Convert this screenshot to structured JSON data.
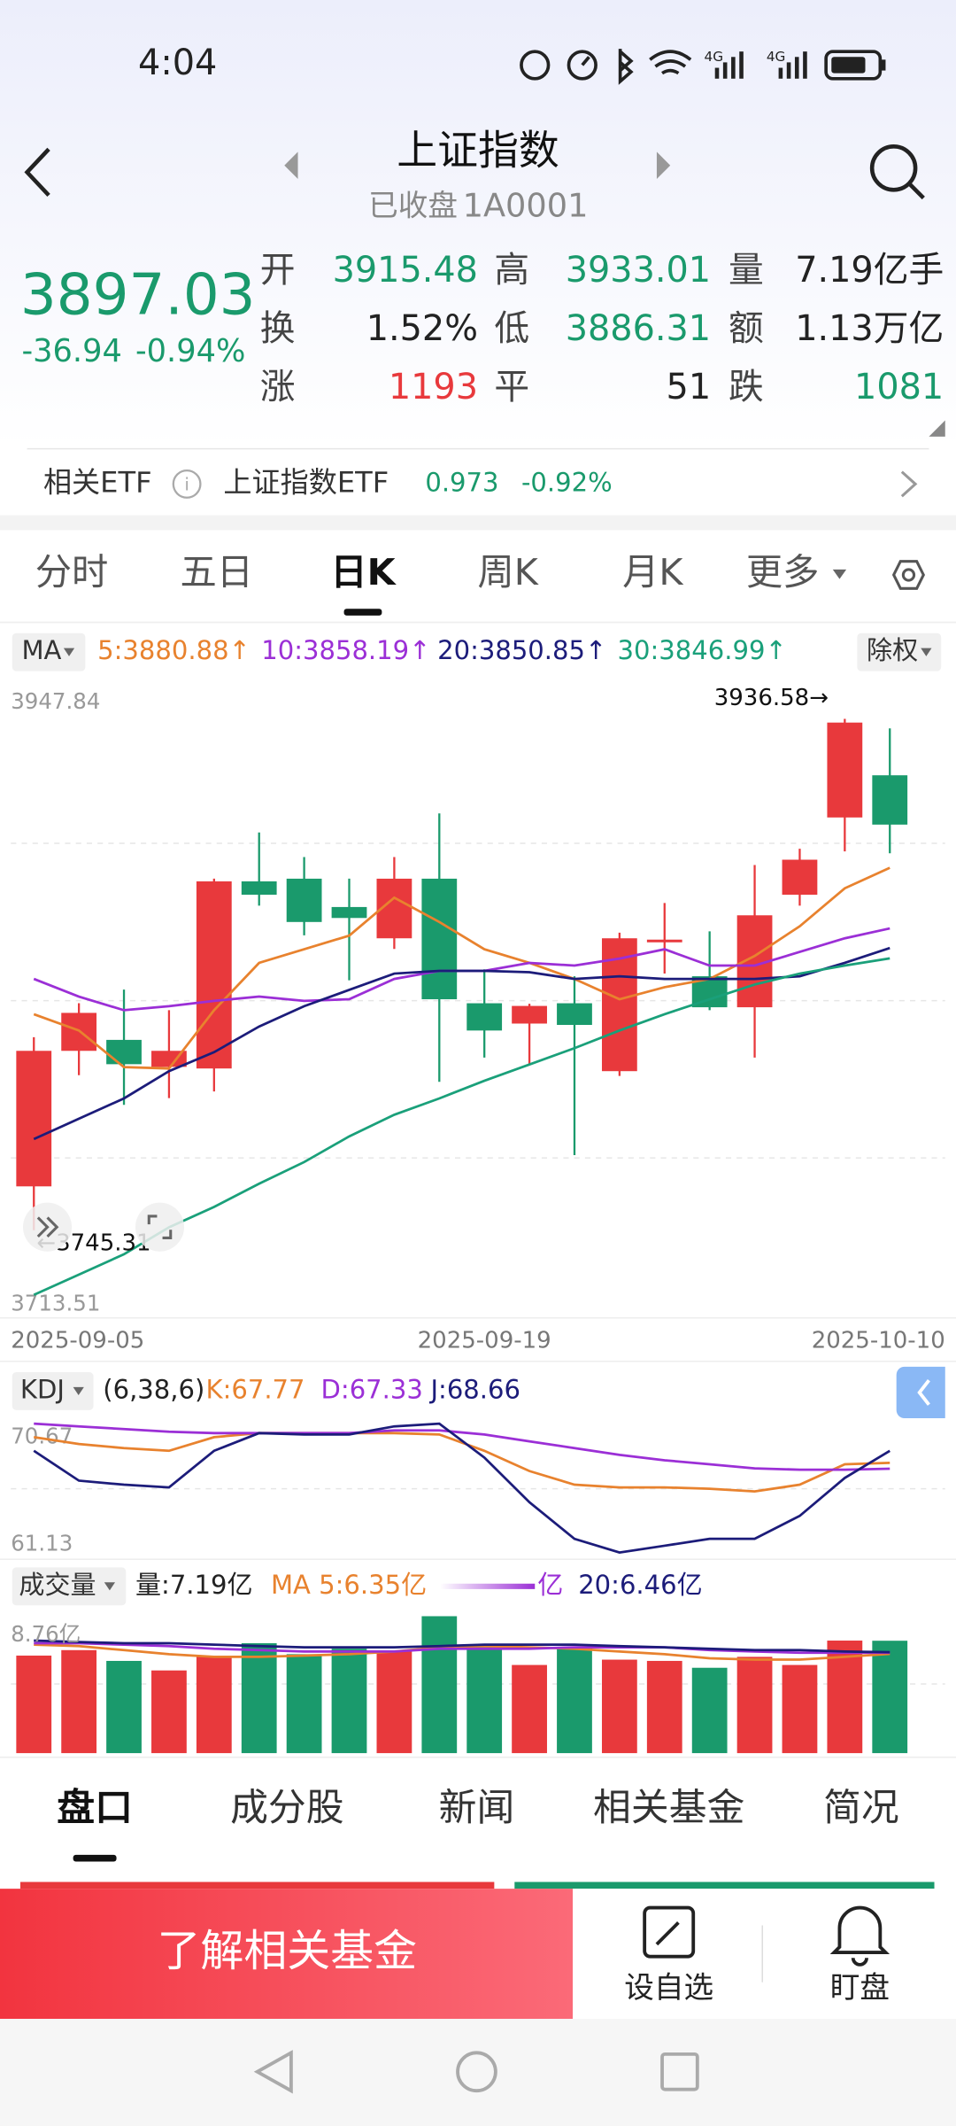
{
  "status_bar": {
    "time": "4:04"
  },
  "header": {
    "title": "上证指数",
    "status": "已收盘",
    "code": "1A0001"
  },
  "quote": {
    "price": "3897.03",
    "change": "-36.94",
    "change_pct": "-0.94%",
    "color": "#1a9a6c",
    "fields": [
      {
        "label": "开",
        "value": "3915.48",
        "color": "#1a9a6c"
      },
      {
        "label": "高",
        "value": "3933.01",
        "color": "#1a9a6c"
      },
      {
        "label": "量",
        "value": "7.19亿手",
        "color": "#222222"
      },
      {
        "label": "换",
        "value": "1.52%",
        "color": "#222222"
      },
      {
        "label": "低",
        "value": "3886.31",
        "color": "#1a9a6c"
      },
      {
        "label": "额",
        "value": "1.13万亿",
        "color": "#222222"
      },
      {
        "label": "涨",
        "value": "1193",
        "color": "#e8393c"
      },
      {
        "label": "平",
        "value": "51",
        "color": "#222222"
      },
      {
        "label": "跌",
        "value": "1081",
        "color": "#1a9a6c"
      }
    ]
  },
  "etf": {
    "label": "相关ETF",
    "name": "上证指数ETF",
    "price": "0.973",
    "change": "-0.92%"
  },
  "tabs": {
    "items": [
      "分时",
      "五日",
      "日K",
      "周K",
      "月K",
      "更多"
    ],
    "active": 2
  },
  "chart_data": [
    {
      "type": "candlestick",
      "indicator": "MA",
      "adjust": "除权",
      "categories": [
        "2025-09-05",
        null,
        null,
        null,
        null,
        null,
        null,
        null,
        null,
        null,
        "2025-09-19",
        null,
        null,
        null,
        null,
        null,
        null,
        null,
        null,
        "2025-10-10"
      ],
      "open": [
        3761.7,
        3812.4,
        3816.5,
        3806.4,
        3805.8,
        3875.8,
        3876.8,
        3866.2,
        3854.5,
        3876.8,
        3830.2,
        3822.6,
        3830.2,
        3804.8,
        3853.0,
        3840.3,
        3828.7,
        3870.8,
        3899.7,
        3915.48
      ],
      "high": [
        3817.5,
        3830.2,
        3835.3,
        3827.6,
        3876.8,
        3894.1,
        3884.9,
        3876.8,
        3884.9,
        3901.2,
        3842.9,
        3830.0,
        3840.3,
        3856.6,
        3867.7,
        3857.1,
        3881.9,
        3888.0,
        3936.58,
        3933.01
      ],
      "low": [
        3745.31,
        3803.3,
        3792.2,
        3794.7,
        3797.2,
        3866.7,
        3855.6,
        3838.8,
        3850.5,
        3800.8,
        3809.9,
        3807.4,
        3773.4,
        3803.0,
        3841.3,
        3827.6,
        3809.9,
        3866.7,
        3887.0,
        3886.31
      ],
      "close": [
        3812.4,
        3826.6,
        3807.4,
        3812.4,
        3875.8,
        3870.8,
        3860.6,
        3862.1,
        3876.8,
        3831.7,
        3820.0,
        3829.2,
        3822.1,
        3854.5,
        3854.0,
        3828.7,
        3863.1,
        3883.9,
        3935.2,
        3897.03
      ],
      "up_color": "#e8393c",
      "down_color": "#1a9a6c",
      "ylim": [
        3713.51,
        3947.84
      ],
      "yticks": [
        3713.51,
        3947.84
      ],
      "annotations": [
        {
          "label": "3936.58→"
        },
        {
          "label": "←3745.31"
        }
      ],
      "series": [
        {
          "name": "5:3880.88↑",
          "color": "#e8822e",
          "values": [
            3826.1,
            3820.0,
            3806.3,
            3805.8,
            3827.6,
            3845.3,
            3850.4,
            3855.5,
            3869.7,
            3860.6,
            3850.4,
            3845.3,
            3839.3,
            3831.7,
            3836.2,
            3839.3,
            3847.9,
            3859.0,
            3873.2,
            3880.88
          ]
        },
        {
          "name": "10:3858.19↑",
          "color": "#9b2fd6",
          "values": [
            3839.3,
            3832.7,
            3827.6,
            3829.1,
            3831.1,
            3832.7,
            3831.1,
            3831.7,
            3839.3,
            3842.3,
            3842.3,
            3845.3,
            3844.3,
            3846.9,
            3850.4,
            3844.3,
            3844.3,
            3849.4,
            3854.5,
            3858.19
          ]
        },
        {
          "name": "20:3850.85↑",
          "color": "#1c1c7a",
          "values": [
            3779.4,
            3787.0,
            3794.6,
            3804.8,
            3811.9,
            3821.5,
            3829.1,
            3835.2,
            3841.3,
            3842.3,
            3842.3,
            3841.8,
            3839.3,
            3840.3,
            3839.3,
            3839.3,
            3839.3,
            3840.3,
            3845.3,
            3850.85
          ]
        },
        {
          "name": "30:3846.99↑",
          "color": "#1aa07a",
          "values": [
            3721.1,
            3728.7,
            3736.3,
            3746.4,
            3754.0,
            3762.7,
            3770.8,
            3780.4,
            3788.5,
            3794.6,
            3801.2,
            3807.3,
            3813.4,
            3820.0,
            3826.1,
            3831.7,
            3837.2,
            3841.3,
            3844.3,
            3846.99
          ]
        }
      ]
    },
    {
      "type": "line",
      "indicator": "KDJ",
      "params": "(6,38,6)",
      "ylim": [
        61.13,
        70.67
      ],
      "yticks": [
        61.13,
        70.67
      ],
      "series": [
        {
          "name": "K:67.77",
          "color": "#e8822e",
          "values": [
            69.67,
            69.16,
            68.86,
            68.66,
            69.67,
            69.97,
            69.97,
            69.97,
            69.97,
            69.87,
            68.66,
            67.16,
            66.15,
            65.95,
            65.95,
            65.85,
            65.65,
            66.15,
            67.66,
            67.77
          ]
        },
        {
          "name": "D:67.33",
          "color": "#9b2fd6",
          "values": [
            70.67,
            70.47,
            70.27,
            70.07,
            69.97,
            69.97,
            69.97,
            69.97,
            70.17,
            70.17,
            69.87,
            69.36,
            68.86,
            68.36,
            67.96,
            67.66,
            67.36,
            67.26,
            67.26,
            67.33
          ]
        },
        {
          "name": "J:68.66",
          "color": "#1c1c7a",
          "values": [
            68.66,
            66.45,
            66.15,
            65.95,
            68.66,
            69.97,
            69.87,
            69.87,
            70.47,
            70.67,
            68.16,
            64.85,
            62.14,
            61.13,
            61.63,
            62.14,
            62.14,
            63.84,
            66.65,
            68.66
          ]
        }
      ]
    },
    {
      "type": "bar",
      "indicator": "成交量",
      "total_label": "量:7.19亿",
      "values": [
        6.24,
        6.59,
        5.9,
        5.29,
        6.16,
        7.03,
        6.33,
        6.68,
        6.5,
        8.76,
        6.77,
        5.64,
        6.77,
        5.98,
        5.9,
        5.46,
        6.16,
        5.64,
        7.2,
        7.19
      ],
      "ylim": [
        0,
        8.76
      ],
      "yticks": [
        {
          "value": 8.76,
          "label": "8.76亿"
        }
      ],
      "series": [
        {
          "name": "MA 5:6.35亿",
          "color": "#e8822e",
          "values": [
            6.94,
            6.85,
            6.59,
            6.33,
            6.16,
            6.16,
            6.24,
            6.33,
            6.5,
            6.77,
            6.85,
            6.77,
            6.68,
            6.5,
            6.33,
            6.07,
            5.98,
            5.98,
            6.16,
            6.35
          ]
        },
        {
          "name": "亿",
          "color": "#9b2fd6",
          "values": [
            7.03,
            7.03,
            6.94,
            6.85,
            6.68,
            6.59,
            6.5,
            6.5,
            6.5,
            6.68,
            6.68,
            6.68,
            6.77,
            6.77,
            6.77,
            6.59,
            6.5,
            6.42,
            6.42,
            6.42
          ]
        },
        {
          "name": "20:6.46亿",
          "color": "#1c1c7a",
          "values": [
            7.2,
            7.11,
            7.03,
            7.03,
            6.94,
            6.85,
            6.77,
            6.77,
            6.77,
            6.85,
            6.94,
            6.94,
            6.94,
            6.85,
            6.77,
            6.68,
            6.59,
            6.59,
            6.5,
            6.46
          ]
        }
      ]
    }
  ],
  "bottom_tabs": {
    "items": [
      "盘口",
      "成分股",
      "新闻",
      "相关基金",
      "简况"
    ],
    "active": 0
  },
  "actions": {
    "button": "了解相关基金",
    "items": [
      "设自选",
      "盯盘"
    ]
  }
}
